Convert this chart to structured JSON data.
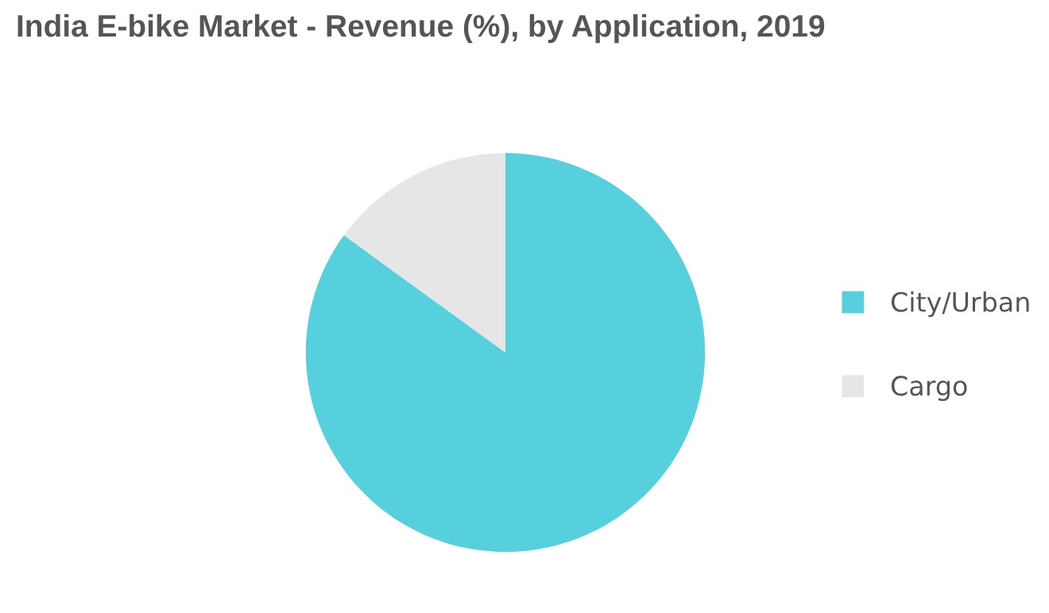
{
  "chart_data": {
    "type": "pie",
    "title": "India E-bike Market - Revenue (%), by Application, 2019",
    "categories": [
      "City/Urban",
      "Cargo"
    ],
    "values": [
      85,
      15
    ],
    "colors": [
      "#55d0dc",
      "#e6e6e6"
    ],
    "legend": "right"
  }
}
